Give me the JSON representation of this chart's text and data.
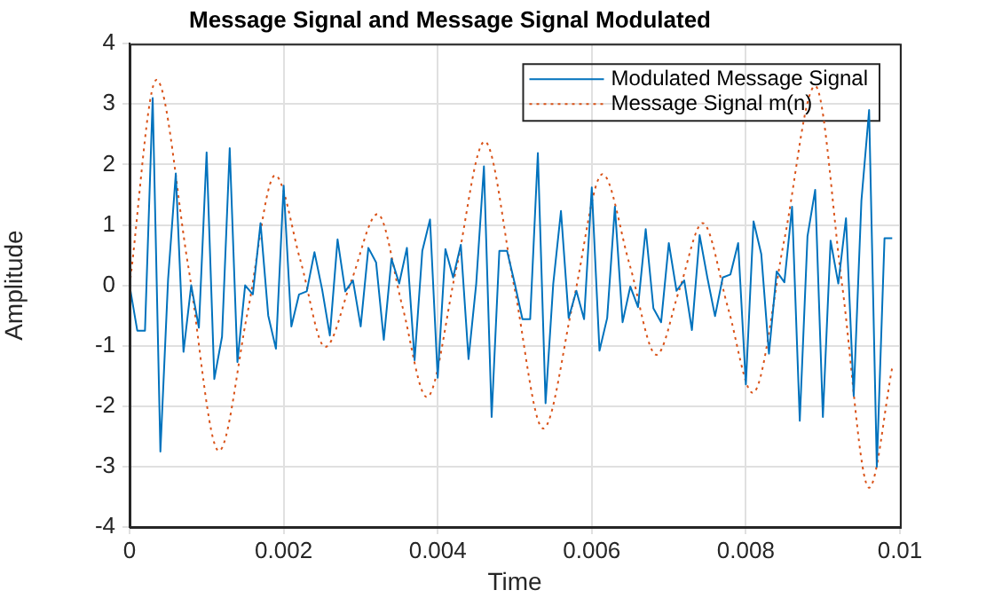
{
  "chart_data": {
    "type": "line",
    "title": "Message Signal and Message Signal Modulated",
    "xlabel": "Time",
    "ylabel": "Amplitude",
    "xlim": [
      0,
      0.01
    ],
    "xticks": [
      0,
      0.002,
      0.004,
      0.006,
      0.008,
      0.01
    ],
    "ylim": [
      -4,
      4
    ],
    "yticks": [
      -4,
      -3,
      -2,
      -1,
      0,
      1,
      2,
      3,
      4
    ],
    "grid": true,
    "legend": "top right",
    "marker": "none",
    "series": [
      {
        "name": "Modulated Message Signal",
        "color": "#0072bd",
        "line_style": "solid",
        "x": [
          0,
          0.0001,
          0.0002,
          0.0003,
          0.0004,
          0.0005,
          0.0006,
          0.0007,
          0.0008,
          0.0009,
          0.001,
          0.0011,
          0.0012,
          0.0013,
          0.0014,
          0.0015,
          0.0016,
          0.0017,
          0.0018,
          0.0019,
          0.002,
          0.0021,
          0.0022,
          0.0023,
          0.0024,
          0.0025,
          0.0026,
          0.0027,
          0.0028,
          0.0029,
          0.003,
          0.0031,
          0.0032,
          0.0033,
          0.0034,
          0.0035,
          0.0036,
          0.0037,
          0.0038,
          0.0039,
          0.004,
          0.0041,
          0.0042,
          0.0043,
          0.0044,
          0.0045,
          0.0046,
          0.0047,
          0.0048,
          0.0049,
          0.005,
          0.0051,
          0.0052,
          0.0053,
          0.0054,
          0.0055,
          0.0056,
          0.0057,
          0.0058,
          0.0059,
          0.006,
          0.0061,
          0.0062,
          0.0063,
          0.0064,
          0.0065,
          0.0066,
          0.0067,
          0.0068,
          0.0069,
          0.007,
          0.0071,
          0.0072,
          0.0073,
          0.0074,
          0.0075,
          0.0076,
          0.0077,
          0.0078,
          0.0079,
          0.008,
          0.0081,
          0.0082,
          0.0083,
          0.0084,
          0.0085,
          0.0086,
          0.0087,
          0.0088,
          0.0089,
          0.009,
          0.0091,
          0.0092,
          0.0093,
          0.0094,
          0.0095,
          0.0096,
          0.0097,
          0.0098,
          0.0099
        ],
        "values": [
          0,
          -0.75,
          -0.75,
          3.1,
          -2.75,
          0.1,
          1.85,
          -1.1,
          0,
          -0.7,
          2.2,
          -1.55,
          -0.85,
          2.27,
          -1.27,
          0,
          -0.15,
          1.03,
          -0.5,
          -1.05,
          1.65,
          -0.68,
          -0.15,
          -0.1,
          0.55,
          -0.07,
          -0.83,
          0.76,
          -0.1,
          0.08,
          -0.68,
          0.62,
          0.38,
          -0.9,
          0.44,
          0.03,
          0.62,
          -1.24,
          0.57,
          1.09,
          -1.53,
          0.6,
          0.13,
          0.67,
          -1.22,
          0.03,
          1.97,
          -2.18,
          0.57,
          0.57,
          0.03,
          -0.56,
          -0.56,
          2.19,
          -1.95,
          0.03,
          1.23,
          -0.54,
          -0.09,
          -0.56,
          1.62,
          -1.08,
          -0.54,
          1.3,
          -0.61,
          -0.02,
          -0.36,
          0.93,
          -0.38,
          -0.61,
          0.7,
          -0.09,
          0.08,
          -0.74,
          0.83,
          0.13,
          -0.51,
          0.13,
          0.18,
          0.7,
          -1.64,
          1.06,
          0.52,
          -1.13,
          0.23,
          0.05,
          1.3,
          -2.24,
          0.81,
          1.58,
          -2.18,
          0.74,
          0.03,
          1.11,
          -1.83,
          1.4,
          2.9,
          -3.0,
          0.78,
          0.78
        ]
      },
      {
        "name": "Message Signal m(n)",
        "color": "#d95319",
        "line_style": "dotted",
        "x": [
          0,
          0.00035,
          0.00076,
          0.00116,
          0.00153,
          0.00189,
          0.00222,
          0.00254,
          0.00288,
          0.00322,
          0.00354,
          0.00386,
          0.00424,
          0.00461,
          0.00499,
          0.00537,
          0.00576,
          0.00614,
          0.00649,
          0.00684,
          0.00714,
          0.00744,
          0.00777,
          0.00809,
          0.0085,
          0.0089,
          0.00925,
          0.0096,
          0.0099
        ],
        "values": [
          0,
          3.4,
          0.33,
          -2.74,
          -0.46,
          1.82,
          0.4,
          -1.02,
          0.08,
          1.18,
          -0.34,
          -1.85,
          0.27,
          2.38,
          0,
          -2.37,
          -0.27,
          1.84,
          0.35,
          -1.15,
          -0.06,
          1.03,
          -0.38,
          -1.78,
          0.76,
          3.3,
          0,
          -3.35,
          -1.36
        ]
      }
    ]
  }
}
